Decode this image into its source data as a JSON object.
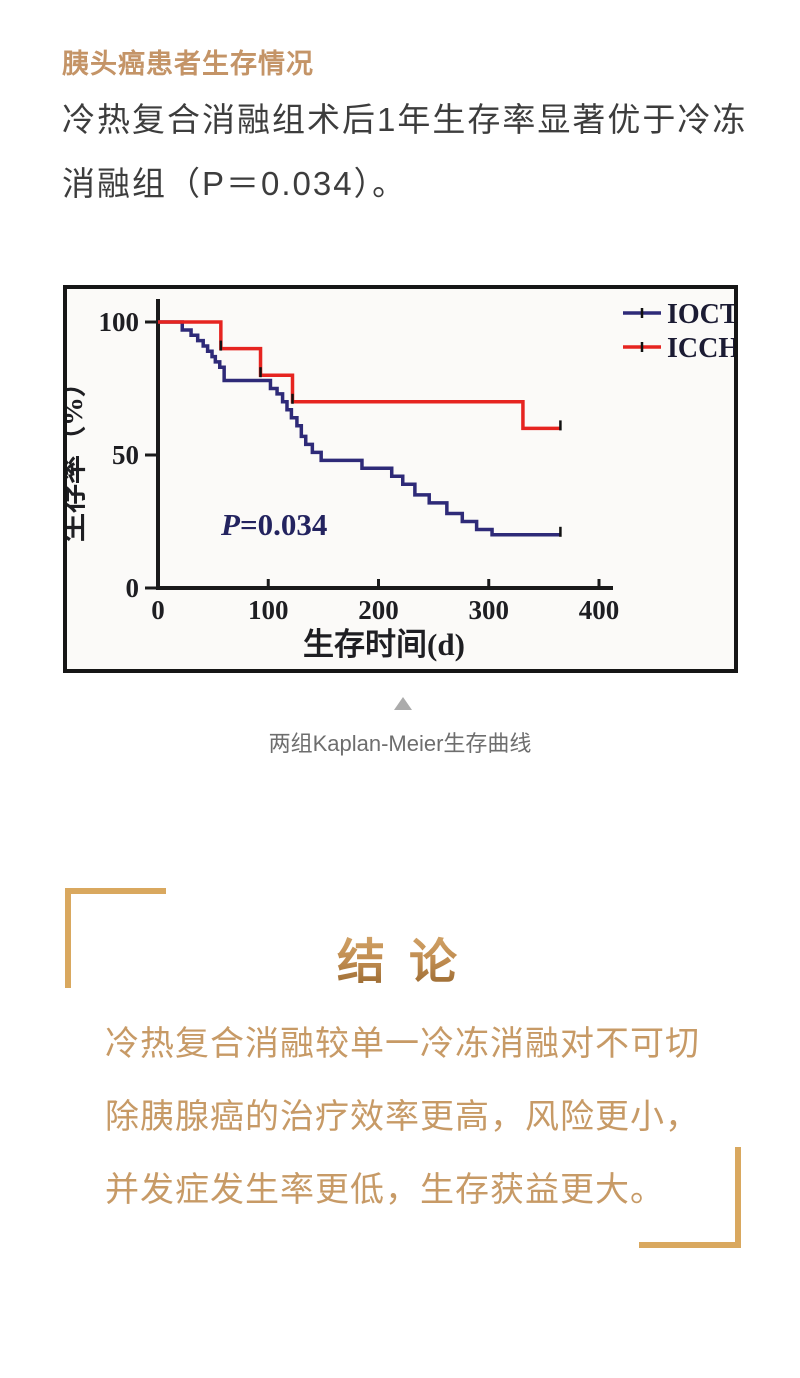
{
  "page": {
    "background": "#ffffff"
  },
  "header": {
    "title": "胰头癌患者生存情况",
    "color": "#c49467"
  },
  "intro": {
    "lines": [
      "冷热复合消融组术后1年生存率显著优于冷冻",
      "消融组（P＝0.034）。"
    ],
    "text_color": "#3d3d3d"
  },
  "figure": {
    "caption": "两组Kaplan-Meier生存曲线",
    "caption_color": "#6e6e6e",
    "collapse_icon": "triangle-up",
    "triangle_color": "#ababab",
    "border_color": "#161616"
  },
  "chart_data": {
    "type": "line",
    "subtype": "kaplan-meier-step",
    "title": "",
    "xlabel": "生存时间(d)",
    "ylabel": "生存率（%）",
    "xlim": [
      0,
      400
    ],
    "ylim": [
      0,
      100
    ],
    "xticks": [
      0,
      100,
      200,
      300,
      400
    ],
    "yticks": [
      0,
      50,
      100
    ],
    "grid": false,
    "legend_position": "top-right",
    "annotation": "P=0.034",
    "annotation_color": "#23235f",
    "axis_color": "#1a1a1a",
    "tick_label_color": "#1e1e22",
    "legend_text_color": "#1b1b33",
    "series": [
      {
        "name": "IOCT",
        "color": "#2e2a78",
        "steps": [
          [
            0,
            100
          ],
          [
            22,
            97
          ],
          [
            30,
            95
          ],
          [
            36,
            93
          ],
          [
            41,
            91
          ],
          [
            45,
            89
          ],
          [
            49,
            87
          ],
          [
            52,
            85
          ],
          [
            56,
            83
          ],
          [
            60,
            78
          ],
          [
            102,
            75
          ],
          [
            108,
            73
          ],
          [
            113,
            70
          ],
          [
            117,
            67
          ],
          [
            121,
            64
          ],
          [
            126,
            61
          ],
          [
            130,
            57
          ],
          [
            134,
            54
          ],
          [
            140,
            51
          ],
          [
            148,
            48
          ],
          [
            185,
            45
          ],
          [
            212,
            42
          ],
          [
            222,
            39
          ],
          [
            233,
            35
          ],
          [
            246,
            32
          ],
          [
            262,
            28
          ],
          [
            276,
            25
          ],
          [
            289,
            22
          ],
          [
            303,
            20
          ],
          [
            365,
            20
          ]
        ],
        "censor_marks": [
          [
            365,
            20
          ]
        ]
      },
      {
        "name": "ICCH",
        "color": "#e62420",
        "steps": [
          [
            0,
            100
          ],
          [
            57,
            90
          ],
          [
            93,
            80
          ],
          [
            122,
            70
          ],
          [
            331,
            60
          ],
          [
            365,
            60
          ]
        ],
        "censor_marks": [
          [
            57,
            90
          ],
          [
            93,
            80
          ],
          [
            122,
            70
          ],
          [
            365,
            60
          ]
        ]
      }
    ]
  },
  "conclusion": {
    "title": "结 论",
    "lines": [
      "冷热复合消融较单一冷冻消融对不可切",
      "除胰腺癌的治疗效率更高，风险更小，",
      "并发症发生率更低，生存获益更大。"
    ],
    "text_color": "#c79a66",
    "bracket_color": "#d9a85f"
  }
}
